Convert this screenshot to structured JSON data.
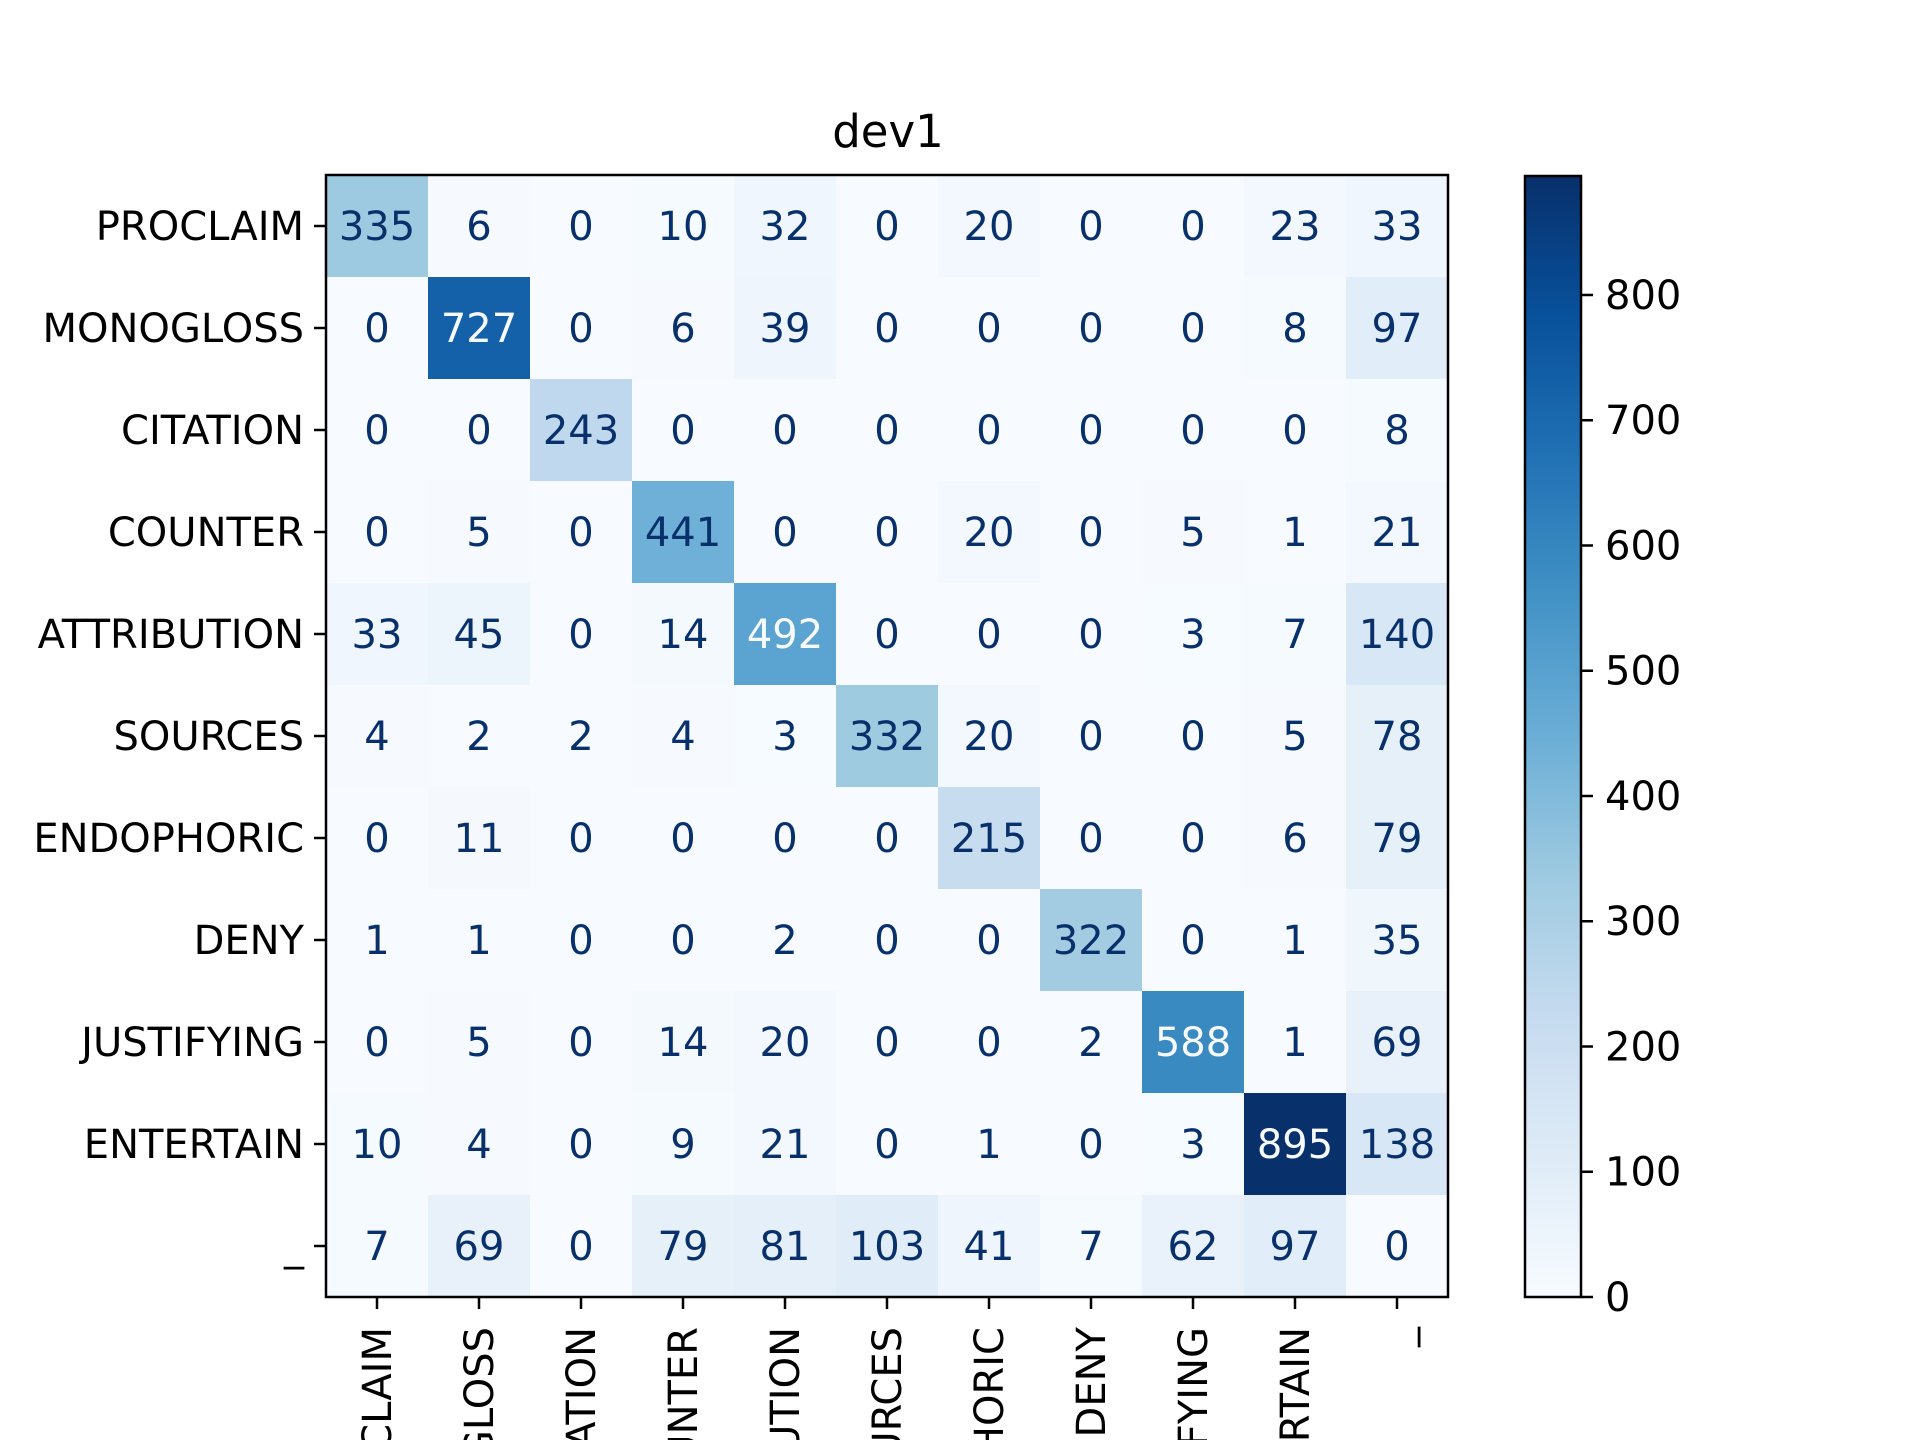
{
  "chart_data": {
    "type": "heatmap",
    "title": "dev1",
    "xlabel": "",
    "ylabel": "",
    "row_labels": [
      "PROCLAIM",
      "MONOGLOSS",
      "CITATION",
      "COUNTER",
      "ATTRIBUTION",
      "SOURCES",
      "ENDOPHORIC",
      "DENY",
      "JUSTIFYING",
      "ENTERTAIN",
      "_"
    ],
    "col_labels": [
      "PROCLAIM",
      "MONOGLOSS",
      "CITATION",
      "COUNTER",
      "ATTRIBUTION",
      "SOURCES",
      "ENDOPHORIC",
      "DENY",
      "JUSTIFYING",
      "ENTERTAIN",
      "_"
    ],
    "col_labels_visible": [
      "CLAIM",
      "GLOSS",
      "ATION",
      "UNTER",
      "UTION",
      "URCES",
      "HORIC",
      "DENY",
      "IFYING",
      "RTAIN",
      "_"
    ],
    "values": [
      [
        335,
        6,
        0,
        10,
        32,
        0,
        20,
        0,
        0,
        23,
        33
      ],
      [
        0,
        727,
        0,
        6,
        39,
        0,
        0,
        0,
        0,
        8,
        97
      ],
      [
        0,
        0,
        243,
        0,
        0,
        0,
        0,
        0,
        0,
        0,
        8
      ],
      [
        0,
        5,
        0,
        441,
        0,
        0,
        20,
        0,
        5,
        1,
        21
      ],
      [
        33,
        45,
        0,
        14,
        492,
        0,
        0,
        0,
        3,
        7,
        140
      ],
      [
        4,
        2,
        2,
        4,
        3,
        332,
        20,
        0,
        0,
        5,
        78
      ],
      [
        0,
        11,
        0,
        0,
        0,
        0,
        215,
        0,
        0,
        6,
        79
      ],
      [
        1,
        1,
        0,
        0,
        2,
        0,
        0,
        322,
        0,
        1,
        35
      ],
      [
        0,
        5,
        0,
        14,
        20,
        0,
        0,
        2,
        588,
        1,
        69
      ],
      [
        10,
        4,
        0,
        9,
        21,
        0,
        1,
        0,
        3,
        895,
        138
      ],
      [
        7,
        69,
        0,
        79,
        81,
        103,
        41,
        7,
        62,
        97,
        0
      ]
    ],
    "colormap": "Blues",
    "vmin": 0,
    "vmax": 895,
    "colorbar_ticks": [
      0,
      100,
      200,
      300,
      400,
      500,
      600,
      700,
      800
    ],
    "grid": false
  }
}
